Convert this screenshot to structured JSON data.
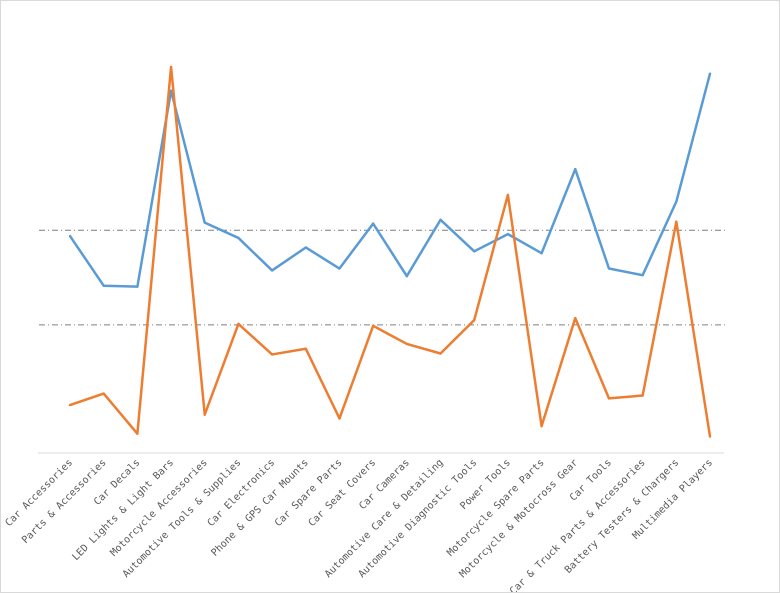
{
  "chart_data": {
    "type": "line",
    "title": "",
    "xlabel": "",
    "ylabel": "",
    "ylim": [
      0,
      400
    ],
    "grid": false,
    "legend": "none",
    "categories": [
      "Car Accessories",
      "Parts & Accessories",
      "Car Decals",
      "LED Lights & Light Bars",
      "Motorcycle Accessories",
      "Automotive Tools & Supplies",
      "Car Electronics",
      "Phone & GPS Car Mounts",
      "Car Spare Parts",
      "Car Seat Covers",
      "Car Cameras",
      "Automotive Care & Detailing",
      "Automotive Diagnostic Tools",
      "Power Tools",
      "Motorcycle Spare Parts",
      "Motorcycle & Motocross Gear",
      "Car Tools",
      "Car & Truck Parts & Accessories",
      "Battery Testers & Chargers",
      "Multimedia Players"
    ],
    "series": [
      {
        "color": "#5B9BD5",
        "values": [
          223,
          171,
          170,
          375,
          237,
          221,
          187,
          211,
          189,
          236,
          181,
          240,
          207,
          225,
          205,
          293,
          189,
          182,
          259,
          393
        ]
      },
      {
        "color": "#ED7D31",
        "values": [
          46,
          58,
          16,
          400,
          36,
          131,
          99,
          105,
          32,
          129,
          110,
          100,
          135,
          266,
          24,
          137,
          53,
          56,
          238,
          13
        ]
      }
    ],
    "reference_lines": [
      {
        "color": "#7F7F7F",
        "style": "dash-dot",
        "value": 229
      },
      {
        "color": "#7F7F7F",
        "style": "dash-dot",
        "value": 130
      }
    ]
  }
}
